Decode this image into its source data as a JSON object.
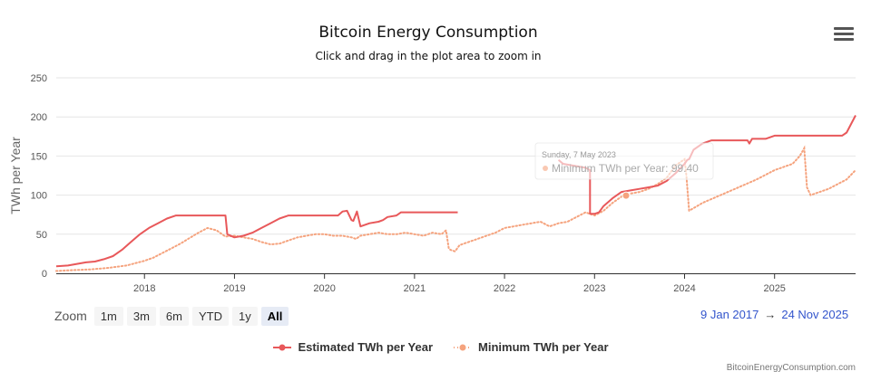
{
  "chart_data": {
    "type": "line",
    "title": "Bitcoin Energy Consumption",
    "subtitle": "Click and drag in the plot area to zoom in",
    "xlabel": "",
    "ylabel": "TWh per Year",
    "ylim": [
      0,
      250
    ],
    "yticks": [
      0,
      50,
      100,
      150,
      200,
      250
    ],
    "xlim": [
      2017.02,
      2025.9
    ],
    "xticks": [
      {
        "value": 2018,
        "label": "2018"
      },
      {
        "value": 2019,
        "label": "2019"
      },
      {
        "value": 2020,
        "label": "2020"
      },
      {
        "value": 2021,
        "label": "2021"
      },
      {
        "value": 2022,
        "label": "2022"
      },
      {
        "value": 2023,
        "label": "2023"
      },
      {
        "value": 2024,
        "label": "2024"
      },
      {
        "value": 2025,
        "label": "2025"
      }
    ],
    "grid": true,
    "legend_position": "bottom-center",
    "series": [
      {
        "name": "Estimated TWh per Year",
        "color": "#e8585a",
        "style": "solid",
        "x": [
          2017.02,
          2017.15,
          2017.25,
          2017.35,
          2017.45,
          2017.55,
          2017.65,
          2017.75,
          2017.85,
          2017.95,
          2018.05,
          2018.15,
          2018.25,
          2018.35,
          2018.45,
          2018.55,
          2018.65,
          2018.75,
          2018.85,
          2018.9,
          2018.92,
          2019.0,
          2019.1,
          2019.2,
          2019.3,
          2019.4,
          2019.5,
          2019.6,
          2019.7,
          2019.8,
          2019.9,
          2020.0,
          2020.1,
          2020.15,
          2020.2,
          2020.25,
          2020.3,
          2020.32,
          2020.36,
          2020.4,
          2020.45,
          2020.5,
          2020.6,
          2020.65,
          2020.7,
          2020.8,
          2020.85,
          2020.9,
          2021.0,
          2021.1,
          2021.15,
          2021.2,
          2021.3,
          2021.4,
          2021.48,
          2021.48,
          2021.7,
          2022.0,
          2022.3,
          2022.5,
          2022.6,
          2022.65,
          2022.8,
          2022.9,
          2022.95,
          2022.95,
          2023.0,
          2023.05,
          2023.1,
          2023.2,
          2023.3,
          2023.4,
          2023.5,
          2023.6,
          2023.7,
          2023.8,
          2023.9,
          2024.0,
          2024.03,
          2024.05,
          2024.1,
          2024.2,
          2024.3,
          2024.5,
          2024.7,
          2024.72,
          2024.75,
          2024.9,
          2025.0,
          2025.2,
          2025.5,
          2025.7,
          2025.75,
          2025.8,
          2025.9
        ],
        "values": [
          9,
          10,
          12,
          14,
          15,
          18,
          22,
          30,
          40,
          50,
          58,
          64,
          70,
          74,
          74,
          74,
          74,
          74,
          74,
          74,
          50,
          46,
          48,
          52,
          58,
          64,
          70,
          74,
          74,
          74,
          74,
          74,
          74,
          74,
          79,
          80,
          68,
          67,
          79,
          60,
          62,
          64,
          66,
          68,
          72,
          74,
          78,
          78,
          78,
          78,
          78,
          78,
          78,
          78,
          78,
          null,
          null,
          null,
          null,
          null,
          145,
          140,
          137,
          135,
          132,
          76,
          76,
          78,
          86,
          96,
          104,
          106,
          108,
          110,
          112,
          118,
          128,
          140,
          145,
          146,
          158,
          166,
          170,
          170,
          170,
          166,
          172,
          172,
          176,
          176,
          176,
          176,
          176,
          180,
          202
        ]
      },
      {
        "name": "Minimum TWh per Year",
        "color": "#f5a37e",
        "style": "dotted",
        "x": [
          2017.02,
          2017.2,
          2017.4,
          2017.6,
          2017.8,
          2018.0,
          2018.1,
          2018.2,
          2018.3,
          2018.4,
          2018.5,
          2018.6,
          2018.7,
          2018.8,
          2018.9,
          2019.0,
          2019.1,
          2019.2,
          2019.3,
          2019.4,
          2019.5,
          2019.6,
          2019.7,
          2019.8,
          2019.9,
          2020.0,
          2020.1,
          2020.2,
          2020.3,
          2020.35,
          2020.4,
          2020.5,
          2020.6,
          2020.7,
          2020.8,
          2020.9,
          2021.0,
          2021.1,
          2021.2,
          2021.3,
          2021.35,
          2021.38,
          2021.4,
          2021.45,
          2021.5,
          2021.6,
          2021.7,
          2021.8,
          2021.9,
          2022.0,
          2022.1,
          2022.2,
          2022.3,
          2022.4,
          2022.5,
          2022.6,
          2022.7,
          2022.8,
          2022.9,
          2023.0,
          2023.1,
          2023.2,
          2023.3,
          2023.4,
          2023.5,
          2023.6,
          2023.7,
          2023.8,
          2023.9,
          2024.0,
          2024.02,
          2024.05,
          2024.2,
          2024.4,
          2024.6,
          2024.8,
          2025.0,
          2025.2,
          2025.28,
          2025.33,
          2025.36,
          2025.4,
          2025.6,
          2025.8,
          2025.9
        ],
        "values": [
          3,
          4,
          5,
          7,
          10,
          16,
          20,
          26,
          32,
          38,
          45,
          52,
          58,
          55,
          47,
          48,
          46,
          44,
          40,
          37,
          38,
          42,
          46,
          48,
          50,
          50,
          48,
          48,
          46,
          44,
          48,
          50,
          52,
          50,
          50,
          52,
          50,
          48,
          52,
          50,
          55,
          32,
          30,
          28,
          36,
          40,
          44,
          48,
          52,
          58,
          60,
          62,
          64,
          66,
          60,
          64,
          66,
          72,
          78,
          74,
          80,
          90,
          98,
          102,
          104,
          108,
          114,
          122,
          138,
          146,
          125,
          80,
          90,
          100,
          110,
          120,
          132,
          140,
          150,
          160,
          110,
          100,
          108,
          120,
          132
        ]
      }
    ],
    "tooltip": {
      "date": "Sunday, 7 May 2023",
      "series": "Minimum TWh per Year",
      "value": "99.40",
      "text": "Minimum TWh per Year: 99.40"
    }
  },
  "colors": {
    "accent": "#3355cc"
  },
  "ui": {
    "menu_icon": "hamburger-menu-icon",
    "zoom_label": "Zoom",
    "zoom_buttons": [
      {
        "label": "1m",
        "active": false
      },
      {
        "label": "3m",
        "active": false
      },
      {
        "label": "6m",
        "active": false
      },
      {
        "label": "YTD",
        "active": false
      },
      {
        "label": "1y",
        "active": false
      },
      {
        "label": "All",
        "active": true
      }
    ],
    "range_from": "9 Jan 2017",
    "range_arrow": "→",
    "range_to": "24 Nov 2025",
    "credit": "BitcoinEnergyConsumption.com"
  }
}
